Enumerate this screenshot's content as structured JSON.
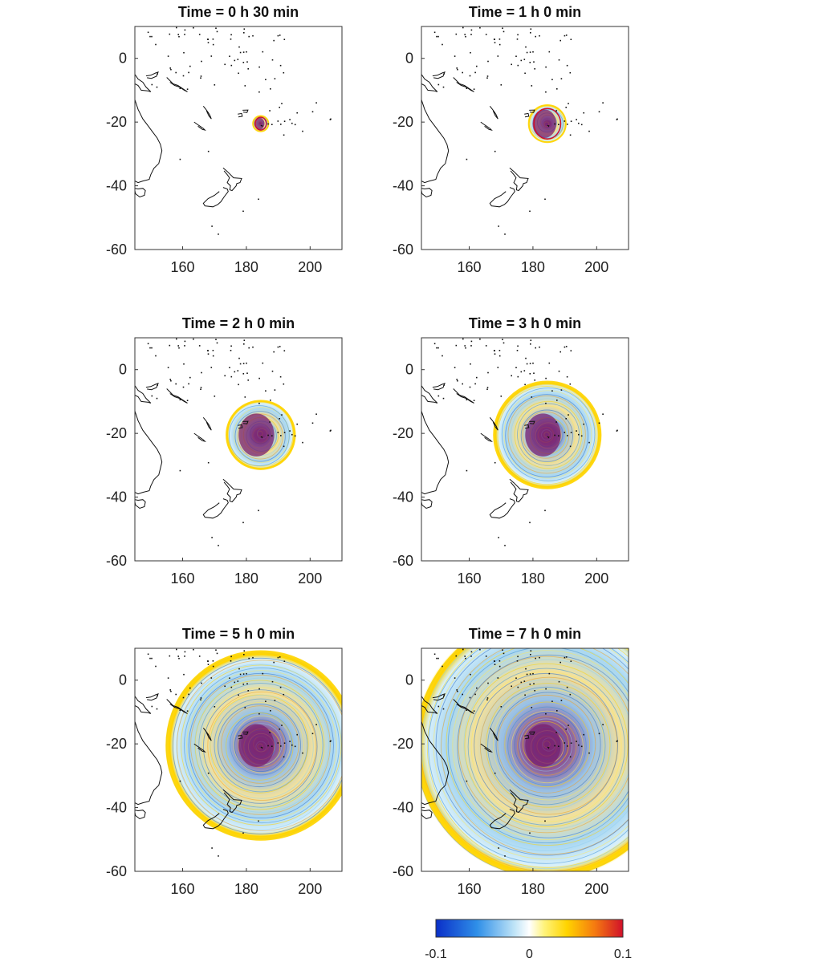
{
  "colors": {
    "negative": "#0a2fc8",
    "neutral": "#ffffff",
    "positive_low": "#ffe600",
    "positive_high": "#d0102a",
    "source": "#7a1f6e",
    "coast": "#111111"
  },
  "chart_data": [
    {
      "type": "heatmap",
      "title": "Time = 0 h 30 min",
      "xlim": [
        145,
        210
      ],
      "ylim": [
        -60,
        10
      ],
      "x_ticks": [
        "160",
        "180",
        "200"
      ],
      "y_ticks": [
        "0",
        "-20",
        "-40",
        "-60"
      ],
      "grid": false,
      "wave_radius_deg": 2.5
    },
    {
      "type": "heatmap",
      "title": "Time = 1 h 0 min",
      "xlim": [
        145,
        210
      ],
      "ylim": [
        -60,
        10
      ],
      "x_ticks": [
        "160",
        "180",
        "200"
      ],
      "y_ticks": [
        "0",
        "-20",
        "-40",
        "-60"
      ],
      "grid": false,
      "wave_radius_deg": 6
    },
    {
      "type": "heatmap",
      "title": "Time = 2 h 0 min",
      "xlim": [
        145,
        210
      ],
      "ylim": [
        -60,
        10
      ],
      "x_ticks": [
        "160",
        "180",
        "200"
      ],
      "y_ticks": [
        "0",
        "-20",
        "-40",
        "-60"
      ],
      "grid": false,
      "wave_radius_deg": 11
    },
    {
      "type": "heatmap",
      "title": "Time = 3 h 0 min",
      "xlim": [
        145,
        210
      ],
      "ylim": [
        -60,
        10
      ],
      "x_ticks": [
        "160",
        "180",
        "200"
      ],
      "y_ticks": [
        "0",
        "-20",
        "-40",
        "-60"
      ],
      "grid": false,
      "wave_radius_deg": 17
    },
    {
      "type": "heatmap",
      "title": "Time = 5 h 0 min",
      "xlim": [
        145,
        210
      ],
      "ylim": [
        -60,
        10
      ],
      "x_ticks": [
        "160",
        "180",
        "200"
      ],
      "y_ticks": [
        "0",
        "-20",
        "-40",
        "-60"
      ],
      "grid": false,
      "wave_radius_deg": 30
    },
    {
      "type": "heatmap",
      "title": "Time = 7 h 0 min",
      "xlim": [
        145,
        210
      ],
      "ylim": [
        -60,
        10
      ],
      "x_ticks": [
        "160",
        "180",
        "200"
      ],
      "y_ticks": [
        "0",
        "-20",
        "-40",
        "-60"
      ],
      "grid": false,
      "wave_radius_deg": 42
    }
  ],
  "colorbar": {
    "ticks": [
      "-0.1",
      "0",
      "0.1"
    ],
    "range": [
      -0.1,
      0.1
    ]
  }
}
